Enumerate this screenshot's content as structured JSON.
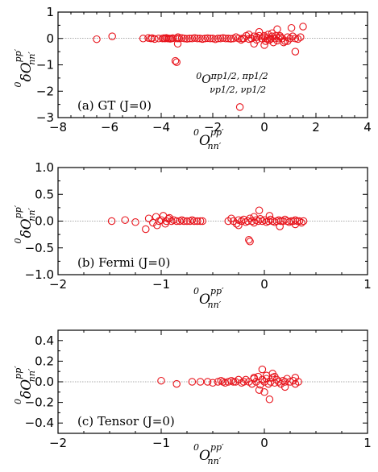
{
  "chart_data": [
    {
      "type": "scatter",
      "panel_label": "(a) GT (J=0)",
      "xlabel": "0O nn′ pp′",
      "ylabel": "0δO nn′ pp′",
      "xlim": [
        -8,
        4
      ],
      "ylim": [
        -3,
        1
      ],
      "xticks": [
        "−8",
        "−6",
        "−4",
        "−2",
        "0",
        "2",
        "4"
      ],
      "yticks": [
        "−3",
        "−2",
        "−1",
        "0",
        "1"
      ],
      "marker_color": "#e8141c",
      "annotation": {
        "line1_prefix": "0",
        "line1": "πp1/2, πp1/2",
        "line2": "νp1/2, νp1/2",
        "x": -0.9,
        "y": -2.6
      },
      "x": [
        -6.5,
        -5.9,
        -4.7,
        -4.5,
        -4.4,
        -4.35,
        -4.25,
        -4.1,
        -3.95,
        -3.9,
        -3.85,
        -3.8,
        -3.75,
        -3.7,
        -3.65,
        -3.6,
        -3.55,
        -3.45,
        -3.4,
        -3.38,
        -3.36,
        -3.35,
        -3.3,
        -3.2,
        -3.1,
        -3.0,
        -2.9,
        -2.8,
        -2.7,
        -2.6,
        -2.5,
        -2.4,
        -2.3,
        -2.2,
        -2.1,
        -2.0,
        -1.9,
        -1.8,
        -1.7,
        -1.6,
        -1.5,
        -1.4,
        -1.3,
        -1.2,
        -1.1,
        -1.0,
        -0.9,
        -0.8,
        -0.7,
        -0.6,
        -0.5,
        -0.4,
        -0.3,
        -0.2,
        -0.1,
        0.0,
        0.05,
        0.1,
        0.15,
        0.2,
        0.25,
        0.3,
        0.35,
        0.4,
        0.45,
        0.5,
        0.55,
        0.6,
        0.7,
        0.8,
        0.9,
        1.0,
        1.1,
        1.2,
        1.3,
        1.4,
        1.5,
        -0.85,
        -0.6,
        -0.4,
        -0.2,
        0.0,
        0.3,
        0.5,
        0.75,
        1.05,
        0.6,
        0.9,
        -0.3,
        0.0,
        0.2,
        1.2,
        -0.95
      ],
      "y": [
        -0.03,
        0.08,
        0.0,
        0.02,
        0.0,
        0.01,
        -0.02,
        0.0,
        0.0,
        0.01,
        0.0,
        0.02,
        0.0,
        0.0,
        -0.01,
        0.0,
        0.01,
        -0.85,
        -0.9,
        0.0,
        -0.2,
        0.05,
        0.0,
        0.02,
        0.0,
        -0.01,
        0.0,
        0.0,
        0.02,
        0.0,
        0.0,
        -0.02,
        0.0,
        0.01,
        0.0,
        0.0,
        -0.03,
        0.0,
        0.0,
        0.02,
        0.0,
        0.0,
        -0.01,
        0.0,
        0.05,
        0.0,
        -0.05,
        0.0,
        0.1,
        -0.02,
        0.0,
        0.08,
        -0.05,
        0.1,
        0.0,
        0.05,
        -0.1,
        0.0,
        0.15,
        -0.05,
        0.0,
        0.08,
        -0.15,
        0.0,
        0.1,
        -0.08,
        0.0,
        0.05,
        0.0,
        -0.1,
        0.05,
        0.0,
        0.08,
        0.0,
        -0.02,
        0.05,
        0.45,
        0.0,
        0.15,
        -0.2,
        0.25,
        -0.25,
        0.2,
        0.35,
        -0.15,
        0.4,
        0.1,
        -0.1,
        0.05,
        0.1,
        -0.05,
        -0.5,
        -2.6
      ]
    },
    {
      "type": "scatter",
      "panel_label": "(b) Fermi (J=0)",
      "xlabel": "0O nn′ pp′",
      "ylabel": "0δO nn′ pp′",
      "xlim": [
        -2,
        1
      ],
      "ylim": [
        -1.0,
        1.0
      ],
      "xticks": [
        "−2",
        "−1",
        "0",
        "1"
      ],
      "yticks": [
        "−1.0",
        "−0.5",
        "0.0",
        "0.5",
        "1.0"
      ],
      "marker_color": "#e8141c",
      "x": [
        -1.48,
        -1.35,
        -1.25,
        -1.15,
        -1.12,
        -1.08,
        -1.05,
        -1.02,
        -1.0,
        -0.98,
        -0.95,
        -0.93,
        -0.9,
        -0.88,
        -0.85,
        -0.82,
        -0.8,
        -0.78,
        -0.75,
        -0.72,
        -0.7,
        -0.68,
        -0.65,
        -0.62,
        -0.6,
        -0.96,
        -0.92,
        -1.04,
        -0.35,
        -0.32,
        -0.3,
        -0.27,
        -0.25,
        -0.22,
        -0.2,
        -0.18,
        -0.16,
        -0.14,
        -0.12,
        -0.1,
        -0.08,
        -0.06,
        -0.04,
        -0.02,
        0.0,
        0.02,
        0.04,
        0.06,
        0.08,
        0.1,
        0.12,
        0.14,
        0.16,
        0.18,
        0.2,
        0.22,
        0.24,
        0.26,
        0.28,
        0.3,
        0.32,
        0.34,
        0.36,
        0.38,
        -0.15,
        -0.14,
        -0.05,
        0.05,
        -0.25,
        0.15,
        0.3,
        -0.1
      ],
      "y": [
        0.0,
        0.02,
        -0.02,
        -0.15,
        0.05,
        -0.03,
        0.08,
        0.0,
        0.02,
        0.1,
        0.0,
        0.04,
        0.0,
        0.02,
        0.0,
        0.0,
        0.02,
        0.0,
        0.0,
        0.0,
        0.02,
        0.0,
        0.0,
        0.0,
        0.0,
        -0.05,
        0.06,
        -0.08,
        0.0,
        0.05,
        0.0,
        -0.05,
        0.02,
        0.0,
        0.03,
        -0.02,
        0.0,
        0.05,
        0.0,
        -0.03,
        0.02,
        0.0,
        0.04,
        0.0,
        0.02,
        -0.02,
        0.0,
        0.03,
        0.0,
        -0.02,
        0.0,
        0.02,
        0.0,
        0.0,
        0.03,
        0.0,
        -0.02,
        0.0,
        0.0,
        0.02,
        0.0,
        0.0,
        -0.03,
        0.0,
        -0.35,
        -0.38,
        0.2,
        0.1,
        -0.08,
        -0.1,
        -0.06,
        0.08
      ]
    },
    {
      "type": "scatter",
      "panel_label": "(c) Tensor (J=0)",
      "xlabel": "0O nn′ pp′",
      "ylabel": "0δO nn′ pp′",
      "xlim": [
        -2,
        1
      ],
      "ylim": [
        -0.5,
        0.5
      ],
      "xticks": [
        "−2",
        "−1",
        "0",
        "1"
      ],
      "yticks": [
        "−0.4",
        "−0.2",
        "0.0",
        "0.2",
        "0.4"
      ],
      "marker_color": "#e8141c",
      "x": [
        -1.0,
        -0.85,
        -0.7,
        -0.62,
        -0.55,
        -0.5,
        -0.45,
        -0.42,
        -0.4,
        -0.38,
        -0.35,
        -0.32,
        -0.3,
        -0.28,
        -0.25,
        -0.22,
        -0.2,
        -0.18,
        -0.15,
        -0.12,
        -0.1,
        -0.08,
        -0.06,
        -0.04,
        -0.02,
        0.0,
        0.02,
        0.04,
        0.06,
        0.08,
        0.1,
        0.12,
        0.14,
        0.16,
        0.18,
        0.2,
        0.22,
        0.25,
        0.28,
        0.3,
        0.33,
        -0.02,
        0.05,
        0.08,
        -0.05,
        0.02,
        0.1,
        -0.1,
        0.0,
        0.2,
        0.3
      ],
      "y": [
        0.01,
        -0.02,
        0.0,
        0.0,
        0.0,
        -0.01,
        0.0,
        0.01,
        0.0,
        -0.01,
        0.0,
        0.01,
        0.0,
        0.0,
        0.02,
        -0.01,
        0.0,
        0.02,
        0.0,
        -0.02,
        0.03,
        0.0,
        0.05,
        -0.03,
        0.02,
        0.0,
        0.03,
        -0.02,
        0.0,
        0.04,
        -0.01,
        0.02,
        0.0,
        -0.02,
        0.01,
        0.0,
        0.03,
        0.0,
        0.01,
        -0.02,
        0.0,
        0.12,
        -0.17,
        0.08,
        -0.08,
        0.06,
        0.05,
        0.04,
        -0.1,
        -0.05,
        0.04
      ]
    }
  ]
}
